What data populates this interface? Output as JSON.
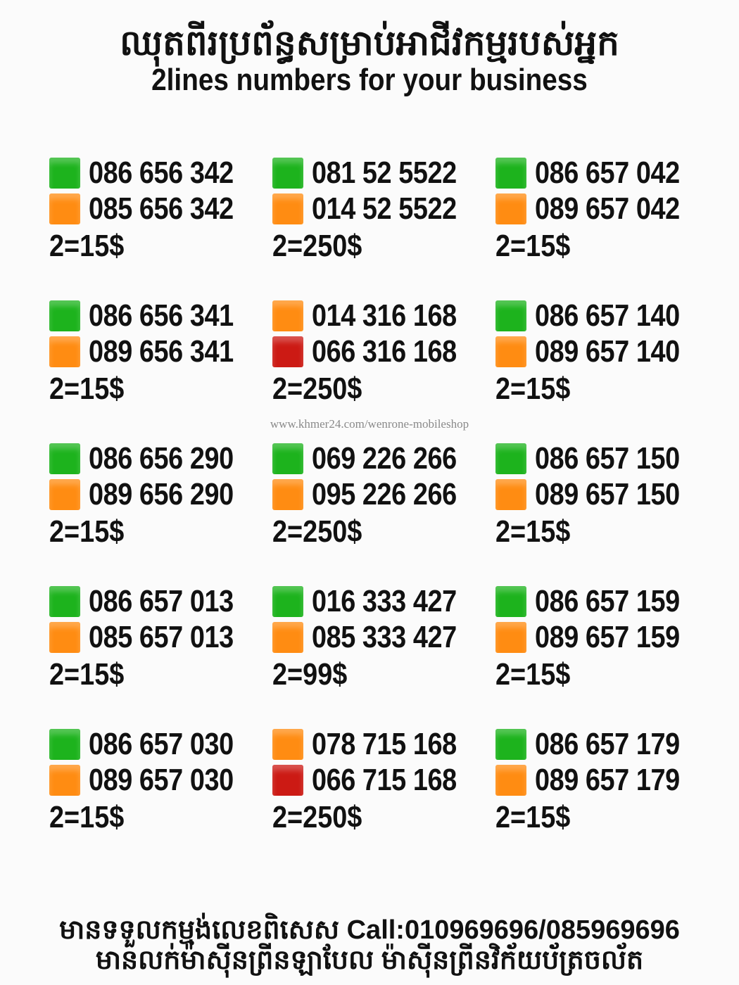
{
  "header": {
    "title_kh": "ឈុតពីរប្រព័ន្ធសម្រាប់អាជីវកម្មរបស់អ្នក",
    "title_en": "2lines numbers for your business"
  },
  "colors": {
    "green": "#1db31d",
    "orange": "#ff8c12",
    "red": "#cc1a14"
  },
  "groups": [
    {
      "lines": [
        {
          "color": "green",
          "number": "086 656 342"
        },
        {
          "color": "orange",
          "number": "085 656 342"
        }
      ],
      "price": "2=15$"
    },
    {
      "lines": [
        {
          "color": "green",
          "number": "081 52 5522"
        },
        {
          "color": "orange",
          "number": "014 52 5522"
        }
      ],
      "price": "2=250$"
    },
    {
      "lines": [
        {
          "color": "green",
          "number": "086 657 042"
        },
        {
          "color": "orange",
          "number": "089 657 042"
        }
      ],
      "price": "2=15$"
    },
    {
      "lines": [
        {
          "color": "green",
          "number": "086 656 341"
        },
        {
          "color": "orange",
          "number": "089 656 341"
        }
      ],
      "price": "2=15$"
    },
    {
      "lines": [
        {
          "color": "orange",
          "number": "014 316 168"
        },
        {
          "color": "red",
          "number": "066 316 168"
        }
      ],
      "price": "2=250$"
    },
    {
      "lines": [
        {
          "color": "green",
          "number": "086 657 140"
        },
        {
          "color": "orange",
          "number": "089 657 140"
        }
      ],
      "price": "2=15$"
    },
    {
      "lines": [
        {
          "color": "green",
          "number": "086 656 290"
        },
        {
          "color": "orange",
          "number": "089 656 290"
        }
      ],
      "price": "2=15$"
    },
    {
      "lines": [
        {
          "color": "green",
          "number": "069 226 266"
        },
        {
          "color": "orange",
          "number": "095 226 266"
        }
      ],
      "price": "2=250$"
    },
    {
      "lines": [
        {
          "color": "green",
          "number": "086 657 150"
        },
        {
          "color": "orange",
          "number": "089 657 150"
        }
      ],
      "price": "2=15$"
    },
    {
      "lines": [
        {
          "color": "green",
          "number": "086 657 013"
        },
        {
          "color": "orange",
          "number": "085 657 013"
        }
      ],
      "price": "2=15$"
    },
    {
      "lines": [
        {
          "color": "green",
          "number": "016 333 427"
        },
        {
          "color": "orange",
          "number": "085 333 427"
        }
      ],
      "price": "2=99$"
    },
    {
      "lines": [
        {
          "color": "green",
          "number": "086 657 159"
        },
        {
          "color": "orange",
          "number": "089 657 159"
        }
      ],
      "price": "2=15$"
    },
    {
      "lines": [
        {
          "color": "green",
          "number": "086 657 030"
        },
        {
          "color": "orange",
          "number": "089 657 030"
        }
      ],
      "price": "2=15$"
    },
    {
      "lines": [
        {
          "color": "orange",
          "number": "078 715 168"
        },
        {
          "color": "red",
          "number": "066 715 168"
        }
      ],
      "price": "2=250$"
    },
    {
      "lines": [
        {
          "color": "green",
          "number": "086 657 179"
        },
        {
          "color": "orange",
          "number": "089 657 179"
        }
      ],
      "price": "2=15$"
    }
  ],
  "watermark": "www.khmer24.com/wenrone-mobileshop",
  "footer": {
    "line1": "មានទទួលកម្មង់លេខពិសេស Call:010969696/085969696",
    "line2": "មានលក់ម៉ាស៊ីនព្រីនឡាបែល ម៉ាស៊ីនព្រីនវិក័យប័ត្រចល័ត"
  }
}
